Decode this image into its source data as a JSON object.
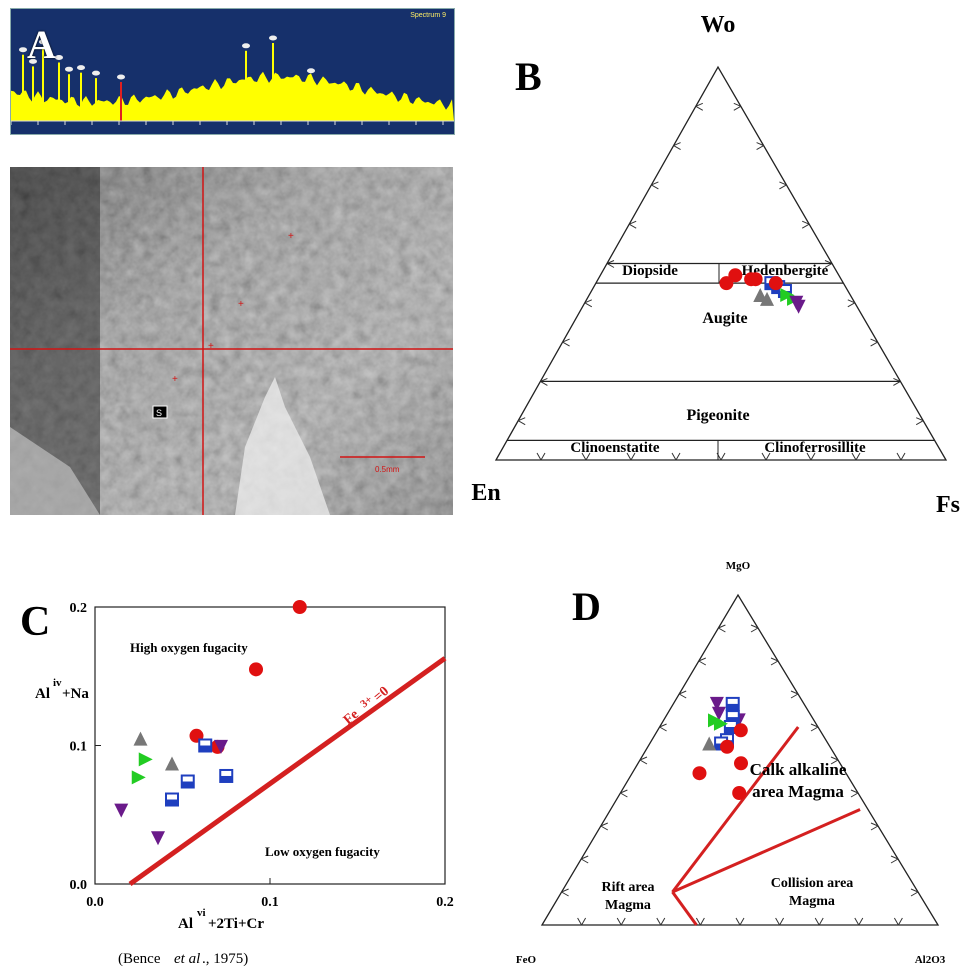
{
  "labels": {
    "a": "A",
    "b": "B",
    "c": "C",
    "d": "D"
  },
  "spectrum": {
    "bg": "#16306b",
    "fill": "#ffff00",
    "caption": "Spectrum 9",
    "peaks_rel": [
      0.85,
      0.7,
      0.95,
      0.75,
      0.6,
      0.62,
      0.55,
      0.5,
      0.9,
      1.0,
      0.58
    ]
  },
  "micro": {
    "spot_label": "S",
    "scale_text": "0.5mm"
  },
  "chart_data": [
    {
      "type": "ternary",
      "panel": "B",
      "apex_labels": {
        "top": "Wo",
        "left": "En",
        "right": "Fs"
      },
      "fields": [
        "Diopside",
        "Hedenbergite",
        "Augite",
        "Pigeonite",
        "Clinoenstatite",
        "Clinoferrosillite"
      ],
      "boundaries_wo": [
        50,
        45,
        20,
        5
      ],
      "series": [
        {
          "name": "square",
          "color": "#1f3fbf",
          "points": [
            [
              45,
              39
            ],
            [
              44,
              41
            ],
            [
              43,
              43
            ]
          ]
        },
        {
          "name": "circle",
          "color": "#e01010",
          "points": [
            [
              45,
              40
            ],
            [
              46,
              35
            ],
            [
              46,
              34
            ],
            [
              47,
              30
            ],
            [
              45,
              29
            ]
          ]
        },
        {
          "name": "triangle-right",
          "color": "#22cc22",
          "points": [
            [
              42,
              44
            ],
            [
              41,
              46
            ]
          ]
        },
        {
          "name": "triangle-up",
          "color": "#777777",
          "points": [
            [
              41,
              40
            ],
            [
              42,
              38
            ]
          ]
        },
        {
          "name": "triangle-down",
          "color": "#6a1a8a",
          "points": [
            [
              39,
              48
            ],
            [
              40,
              47
            ]
          ]
        }
      ]
    },
    {
      "type": "scatter",
      "panel": "C",
      "xlabel_main": "Al",
      "xlabel_sup": "vi",
      "xlabel_rest": "+2Ti+Cr",
      "ylabel_main": "Al",
      "ylabel_sup": "iv",
      "ylabel_rest": "+Na",
      "xlim": [
        0,
        0.2
      ],
      "ylim": [
        0,
        0.2
      ],
      "xticks": [
        "0.0",
        "0.1",
        "0.2"
      ],
      "yticks": [
        "0.0",
        "0.1",
        "0.2"
      ],
      "annotations": {
        "high": "High oxygen fugacity",
        "low": "Low oxygen fugacity",
        "line": "Fe",
        "line_sup": "3+",
        "line_rest": "=0"
      },
      "line": {
        "x": [
          0.02,
          0.2
        ],
        "y": [
          0.0,
          0.163
        ]
      },
      "citation_a": "(Bence ",
      "citation_b": "et al",
      "citation_c": "., 1975)",
      "series": [
        {
          "name": "circle",
          "color": "#e01010",
          "points": [
            [
              0.117,
              0.2
            ],
            [
              0.092,
              0.155
            ],
            [
              0.058,
              0.107
            ],
            [
              0.07,
              0.099
            ]
          ]
        },
        {
          "name": "square",
          "color": "#1f3fbf",
          "points": [
            [
              0.063,
              0.1
            ],
            [
              0.053,
              0.074
            ],
            [
              0.075,
              0.078
            ],
            [
              0.044,
              0.061
            ]
          ]
        },
        {
          "name": "triangle-up",
          "color": "#777777",
          "points": [
            [
              0.026,
              0.105
            ],
            [
              0.044,
              0.087
            ]
          ]
        },
        {
          "name": "triangle-right",
          "color": "#22cc22",
          "points": [
            [
              0.029,
              0.09
            ],
            [
              0.025,
              0.077
            ]
          ]
        },
        {
          "name": "triangle-down",
          "color": "#6a1a8a",
          "points": [
            [
              0.015,
              0.053
            ],
            [
              0.036,
              0.033
            ],
            [
              0.072,
              0.099
            ]
          ]
        }
      ]
    },
    {
      "type": "ternary",
      "panel": "D",
      "apex_labels": {
        "top": "MgO",
        "left": "FeO",
        "right": "Al2O3"
      },
      "fields": [
        {
          "line1": "Calk alkaline",
          "line2": "area Magma"
        },
        {
          "line1": "Rift area",
          "line2": "Magma"
        },
        {
          "line1": "Collision area",
          "line2": "Magma"
        }
      ],
      "series": [
        {
          "name": "triangle-down",
          "color": "#6a1a8a",
          "points": [
            [
              0.67,
              0.22,
              0.11
            ],
            [
              0.64,
              0.23,
              0.13
            ],
            [
              0.62,
              0.19,
              0.19
            ]
          ]
        },
        {
          "name": "square",
          "color": "#1f3fbf",
          "points": [
            [
              0.67,
              0.18,
              0.15
            ],
            [
              0.63,
              0.2,
              0.17
            ],
            [
              0.6,
              0.22,
              0.18
            ],
            [
              0.56,
              0.25,
              0.19
            ],
            [
              0.55,
              0.27,
              0.18
            ]
          ]
        },
        {
          "name": "triangle-right",
          "color": "#22cc22",
          "points": [
            [
              0.62,
              0.25,
              0.13
            ],
            [
              0.61,
              0.24,
              0.15
            ]
          ]
        },
        {
          "name": "triangle-up",
          "color": "#777777",
          "points": [
            [
              0.55,
              0.3,
              0.15
            ]
          ]
        },
        {
          "name": "circle",
          "color": "#e01010",
          "points": [
            [
              0.59,
              0.2,
              0.21
            ],
            [
              0.54,
              0.26,
              0.2
            ],
            [
              0.49,
              0.25,
              0.26
            ],
            [
              0.46,
              0.37,
              0.17
            ],
            [
              0.4,
              0.3,
              0.3
            ]
          ]
        }
      ]
    }
  ]
}
